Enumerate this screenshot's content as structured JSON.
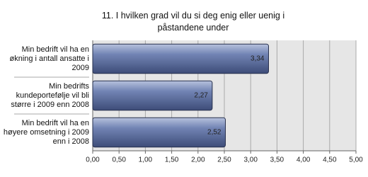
{
  "chart_data": {
    "type": "hbar",
    "title": "11. I hvilken grad vil du si deg enig eller uenig i påstandene under",
    "categories": [
      "Min bedrift vil ha en økning i antall ansatte i 2009",
      "Min bedrifts kundeportefølje vil bli større i 2009 enn 2008",
      "Min bedrift vil ha en høyere omsetning i 2009 enn i 2008"
    ],
    "values": [
      3.34,
      2.27,
      2.52
    ],
    "value_labels": [
      "3,34",
      "2,27",
      "2,52"
    ],
    "color": "#5a6c9e",
    "xlim": [
      0,
      5
    ],
    "xticks": [
      {
        "value": 0,
        "label": "0,00"
      },
      {
        "value": 0.5,
        "label": "0,50"
      },
      {
        "value": 1,
        "label": "1,00"
      },
      {
        "value": 1.5,
        "label": "1,50"
      },
      {
        "value": 2,
        "label": "2,00"
      },
      {
        "value": 2.5,
        "label": "2,50"
      },
      {
        "value": 3,
        "label": "3,00"
      },
      {
        "value": 3.5,
        "label": "3,50"
      },
      {
        "value": 4,
        "label": "4,00"
      },
      {
        "value": 4.5,
        "label": "4,50"
      },
      {
        "value": 5,
        "label": "5,00"
      }
    ],
    "grid": true
  }
}
